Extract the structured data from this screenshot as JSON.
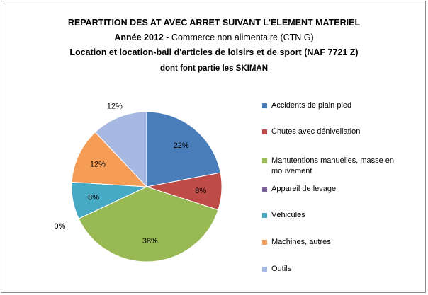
{
  "title": {
    "line1": "REPARTITION DES AT AVEC ARRET SUIVANT L'ELEMENT MATERIEL",
    "line2_bold": "Année 2012",
    "line2_rest": " - Commerce non alimentaire (CTN G)",
    "line3": "Location et location-bail d'articles de loisirs et de sport (NAF 7721 Z)",
    "line4": "dont font partie les  SKIMAN"
  },
  "chart_data": {
    "type": "pie",
    "legend_position": "right",
    "start_angle_deg": 0,
    "direction": "clockwise",
    "slices": [
      {
        "name": "Accidents de plain pied",
        "value": 22,
        "label": "22%",
        "color": "#4a7ebb"
      },
      {
        "name": "Chutes avec dénivellation",
        "value": 8,
        "label": "8%",
        "color": "#be4b48"
      },
      {
        "name": "Manutentions manuelles, masse en mouvement",
        "value": 38,
        "label": "38%",
        "color": "#98b954"
      },
      {
        "name": "Appareil de levage",
        "value": 0,
        "label": "0%",
        "color": "#7d60a0"
      },
      {
        "name": "Véhicules",
        "value": 8,
        "label": "8%",
        "color": "#46aac5"
      },
      {
        "name": "Machines, autres",
        "value": 12,
        "label": "12%",
        "color": "#f59d56"
      },
      {
        "name": "Outils",
        "value": 12,
        "label": "12%",
        "color": "#a7b9e3"
      }
    ]
  }
}
